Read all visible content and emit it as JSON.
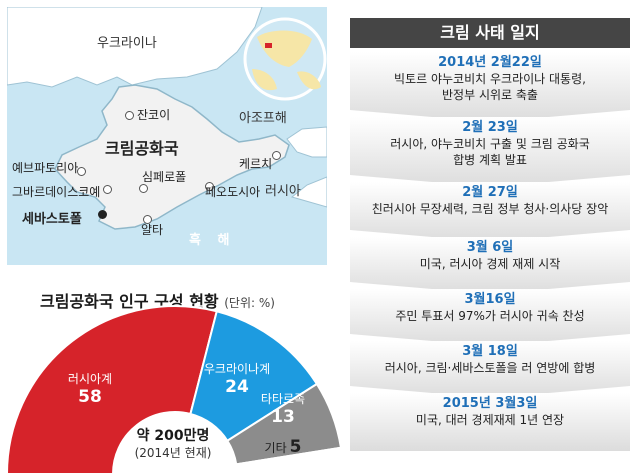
{
  "map": {
    "labels": {
      "ukraine": "우크라이나",
      "sea_of_azov": "아조프해",
      "crimea": "크림공화국",
      "black_sea": "흑 해",
      "russia": "러시아",
      "dzhankoi": "잔코이",
      "yevpatoria": "예브파토리아",
      "simferopol": "심페로폴",
      "feodosia": "페오도시아",
      "kerch": "케르치",
      "gvardeyskoe": "그바르데이스코예",
      "sevastopol": "세바스토폴",
      "yalta": "얄타"
    },
    "colors": {
      "sea": "#c9e6f3",
      "land": "#ffffff",
      "crimea": "#f2f2f2"
    }
  },
  "timeline": {
    "title": "크림 사태 일지",
    "events": [
      {
        "date": "2014년 2월22일",
        "lines": [
          "빅토르 야누코비치 우크라이나 대통령,",
          "반정부 시위로 축출"
        ]
      },
      {
        "date": "2월 23일",
        "lines": [
          "러시아, 야누코비치 구출 및 크림 공화국",
          "합병 계획 발표"
        ]
      },
      {
        "date": "2월 27일",
        "lines": [
          "친러시아 무장세력, 크림 정부 청사·의사당 장악"
        ]
      },
      {
        "date": "3월 6일",
        "lines": [
          "미국, 러시아 경제 재제 시작"
        ]
      },
      {
        "date": "3월16일",
        "lines": [
          "주민 투표서 97%가 러시아 귀속 찬성"
        ]
      },
      {
        "date": "3월 18일",
        "lines": [
          "러시아, 크림·세바스토폴을 러 연방에 합병"
        ]
      },
      {
        "date": "2015년 3월3일",
        "lines": [
          "미국, 대러 경제재제 1년 연장"
        ]
      }
    ],
    "colors": {
      "header": "#454545",
      "date": "#1f6fb7",
      "box_light": "#ffffff",
      "box_dark": "#dcdcdc"
    }
  },
  "population": {
    "title": "크림공화국 인구 구성 현황",
    "unit": "(단위: %)",
    "total": "약 200만명",
    "year_note": "(2014년 현재)",
    "segments": [
      {
        "name": "러시아계",
        "value": 58,
        "color": "#d6232a"
      },
      {
        "name": "우크라이나계",
        "value": 24,
        "color": "#1d9be0"
      },
      {
        "name": "타타르족",
        "value": 13,
        "color": "#8c8c8c"
      },
      {
        "name": "기타",
        "value": 5,
        "color": "#ffffff"
      }
    ]
  }
}
